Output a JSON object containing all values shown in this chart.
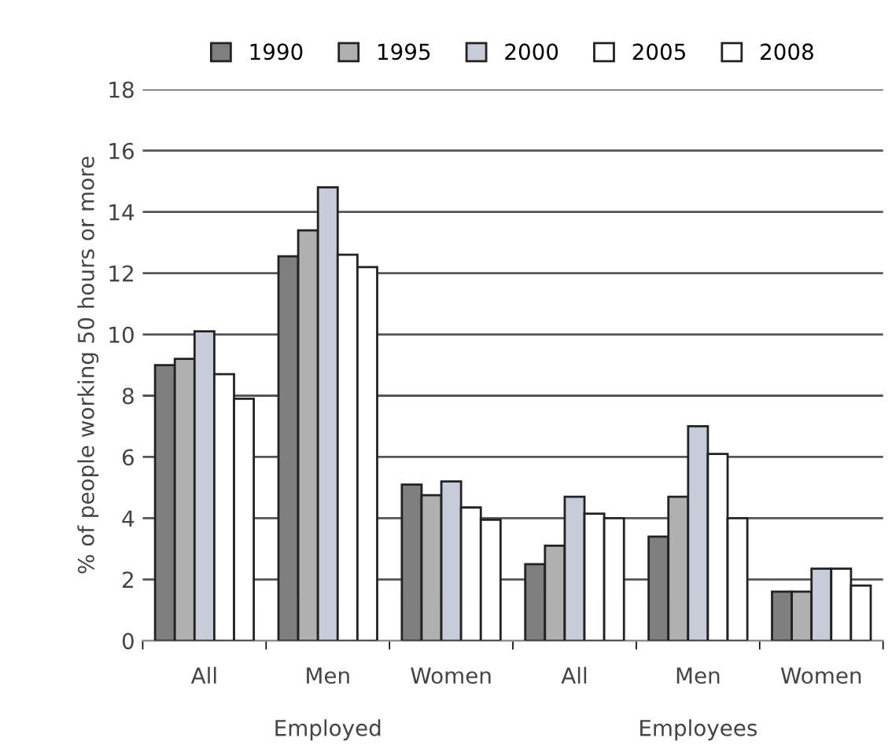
{
  "chart_data": {
    "type": "bar",
    "ylabel": "% of people working 50 hours or more",
    "categories": [
      "All",
      "Men",
      "Women",
      "All",
      "Men",
      "Women"
    ],
    "annotations": [
      "Employed",
      "Employees"
    ],
    "series": [
      {
        "name": "1990",
        "color": "#7f7f7f",
        "values": [
          9.0,
          12.55,
          5.1,
          2.5,
          3.4,
          1.6
        ]
      },
      {
        "name": "1995",
        "color": "#b0b0b0",
        "values": [
          9.2,
          13.4,
          4.75,
          3.1,
          4.7,
          1.6
        ]
      },
      {
        "name": "2000",
        "color": "#c8ccd8",
        "values": [
          10.1,
          14.8,
          5.2,
          4.7,
          7.0,
          2.35
        ]
      },
      {
        "name": "2005",
        "color": "#ffffff",
        "values": [
          8.7,
          12.6,
          4.35,
          4.15,
          6.1,
          2.35
        ]
      },
      {
        "name": "2008",
        "color": "#ffffff",
        "values": [
          7.9,
          12.2,
          3.95,
          4.0,
          4.0,
          1.8
        ]
      }
    ],
    "ylim": [
      0,
      18
    ],
    "yticks": [
      0,
      2,
      4,
      6,
      8,
      10,
      12,
      14,
      16,
      18
    ],
    "grid": "y",
    "legend": "top"
  }
}
